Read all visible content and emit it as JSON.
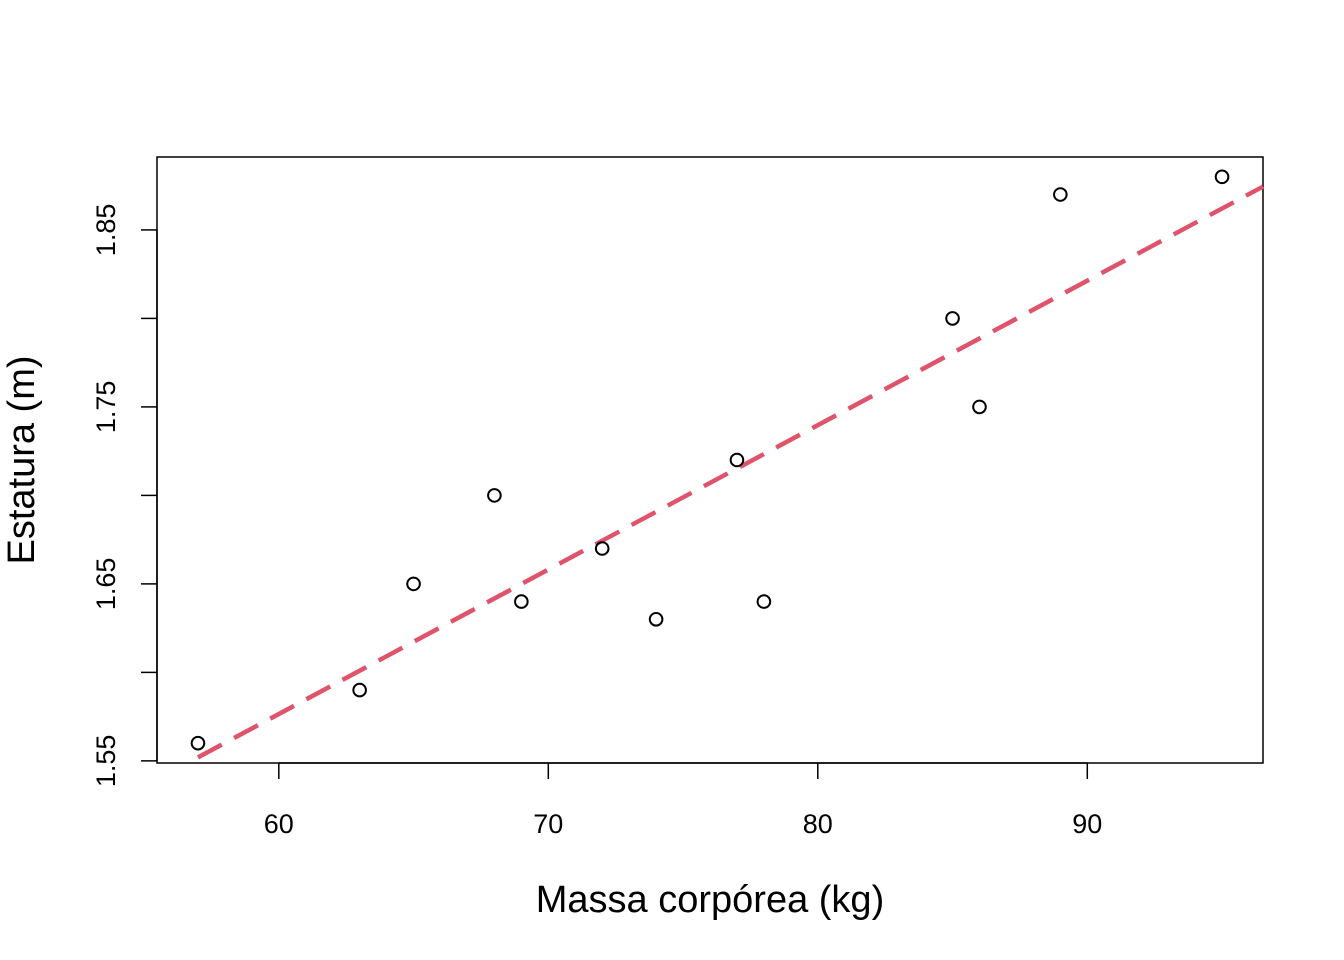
{
  "chart_data": {
    "type": "scatter",
    "title": "",
    "xlabel": "Massa corpórea (kg)",
    "ylabel": "Estatura (m)",
    "xlim": [
      55.48,
      96.52
    ],
    "ylim": [
      1.5488,
      1.8912
    ],
    "x_ticks": [
      60,
      70,
      80,
      90
    ],
    "x_tick_labels": [
      "60",
      "70",
      "80",
      "90"
    ],
    "y_ticks": [
      1.55,
      1.6,
      1.65,
      1.7,
      1.75,
      1.8,
      1.85
    ],
    "y_tick_labels": [
      "1.55",
      "",
      "1.65",
      "",
      "1.75",
      "",
      "1.85"
    ],
    "grid": false,
    "series": [
      {
        "type": "scatter",
        "marker": "open-circle",
        "color": "#000000",
        "x": [
          57,
          63,
          65,
          68,
          69,
          72,
          74,
          77,
          78,
          85,
          86,
          89,
          95
        ],
        "y": [
          1.56,
          1.59,
          1.65,
          1.7,
          1.64,
          1.67,
          1.63,
          1.72,
          1.64,
          1.8,
          1.75,
          1.87,
          1.88
        ]
      },
      {
        "type": "line",
        "style": "dashed",
        "color": "#DF536B",
        "x": [
          57,
          96.52
        ],
        "y": [
          1.552,
          1.8745
        ]
      }
    ]
  }
}
